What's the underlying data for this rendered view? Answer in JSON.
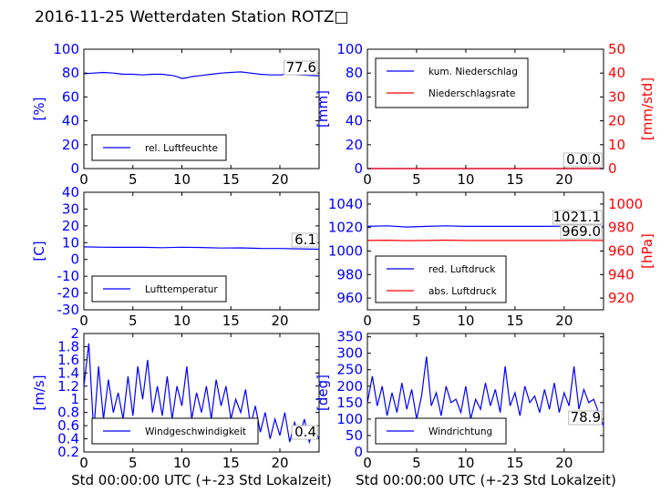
{
  "title": "2016-11-25 Wetterdaten Station ROTZ",
  "title_glyph": "□",
  "xlabel": "Std 00:00:00 UTC (+-23 Std Lokalzeit)",
  "colors": {
    "blue": "#0000ff",
    "red": "#ff0000",
    "black": "#000000"
  },
  "chart_data": [
    {
      "id": "humidity",
      "type": "line",
      "ylabel": "[%]",
      "ylabel_color": "blue",
      "xlim": [
        0,
        24
      ],
      "ylim": [
        0,
        100
      ],
      "xticks": [
        0,
        5,
        10,
        15,
        20
      ],
      "yticks": [
        0,
        20,
        40,
        60,
        80,
        100
      ],
      "legend": "bottom-left",
      "series": [
        {
          "name": "rel. Luftfeuchte",
          "color": "blue",
          "x": [
            0,
            1,
            2,
            3,
            4,
            5,
            6,
            7,
            8,
            9,
            9.5,
            10,
            10.5,
            11,
            12,
            13,
            14,
            15,
            16,
            17,
            18,
            19,
            20,
            21,
            22,
            23,
            24
          ],
          "y": [
            79.5,
            80,
            80.5,
            80,
            79,
            79,
            78.5,
            79,
            79,
            78,
            77,
            75.5,
            76,
            77,
            78,
            79,
            80,
            80.5,
            81,
            80,
            79,
            78.5,
            78.5,
            79,
            78.5,
            78,
            77.6
          ]
        }
      ],
      "annotations": [
        "77.6"
      ]
    },
    {
      "id": "precip",
      "type": "line",
      "ylabel": "[mm]",
      "ylabel_color": "blue",
      "y2label": "[mm/std]",
      "y2label_color": "red",
      "xlim": [
        0,
        24
      ],
      "ylim": [
        0,
        100
      ],
      "y2lim": [
        0,
        50
      ],
      "xticks": [
        0,
        5,
        10,
        15,
        20
      ],
      "yticks": [
        0,
        20,
        40,
        60,
        80,
        100
      ],
      "y2ticks": [
        0,
        10,
        20,
        30,
        40,
        50
      ],
      "legend": "top-left",
      "series": [
        {
          "name": "kum. Niederschlag",
          "color": "blue",
          "axis": "left",
          "x": [
            0,
            24
          ],
          "y": [
            0,
            0
          ]
        },
        {
          "name": "Niederschlagsrate",
          "color": "red",
          "axis": "right",
          "x": [
            0,
            24
          ],
          "y": [
            0,
            0
          ]
        }
      ],
      "annotations": [
        "0.0",
        "0.0"
      ]
    },
    {
      "id": "temperature",
      "type": "line",
      "ylabel": "[C]",
      "ylabel_color": "blue",
      "xlim": [
        0,
        24
      ],
      "ylim": [
        -30,
        40
      ],
      "xticks": [
        0,
        5,
        10,
        15,
        20
      ],
      "yticks": [
        -30,
        -20,
        -10,
        0,
        10,
        20,
        30,
        40
      ],
      "legend": "bottom-left",
      "series": [
        {
          "name": "Lufttemperatur",
          "color": "blue",
          "x": [
            0,
            2,
            4,
            6,
            8,
            10,
            12,
            14,
            16,
            18,
            20,
            22,
            24
          ],
          "y": [
            7.5,
            7.3,
            7.2,
            7.2,
            7,
            7.3,
            7.1,
            6.8,
            6.9,
            6.6,
            6.5,
            6.3,
            6.1
          ]
        }
      ],
      "annotations": [
        "6.1"
      ]
    },
    {
      "id": "pressure",
      "type": "line",
      "ylabel": "",
      "y2label": "[hPa]",
      "y2label_color": "red",
      "xlim": [
        0,
        24
      ],
      "ylim": [
        950,
        1050
      ],
      "y2lim": [
        910,
        1010
      ],
      "xticks": [
        0,
        5,
        10,
        15,
        20
      ],
      "yticks": [
        960,
        980,
        1000,
        1020,
        1040
      ],
      "y2ticks": [
        920,
        940,
        960,
        980,
        1000
      ],
      "legend": "bottom-left",
      "series": [
        {
          "name": "red. Luftdruck",
          "color": "blue",
          "axis": "left",
          "x": [
            0,
            2,
            4,
            6,
            8,
            10,
            12,
            14,
            16,
            18,
            20,
            22,
            24
          ],
          "y": [
            1021,
            1021.5,
            1020.5,
            1021,
            1021.5,
            1021,
            1021,
            1021,
            1021,
            1021,
            1021.2,
            1021.3,
            1021.1
          ]
        },
        {
          "name": "abs. Luftdruck",
          "color": "red",
          "axis": "right",
          "x": [
            0,
            2,
            4,
            6,
            8,
            10,
            12,
            14,
            16,
            18,
            20,
            22,
            24
          ],
          "y": [
            969,
            969.2,
            968.8,
            969,
            969.3,
            969,
            969,
            969,
            969,
            969,
            969,
            969.1,
            969.0
          ]
        }
      ],
      "annotations": [
        "1021.1",
        "969.0"
      ]
    },
    {
      "id": "wind_speed",
      "type": "line",
      "ylabel": "[m/s]",
      "ylabel_color": "blue",
      "xlim": [
        0,
        24
      ],
      "ylim": [
        0.2,
        2.0
      ],
      "xticks": [
        0,
        5,
        10,
        15,
        20
      ],
      "yticks": [
        0.2,
        0.4,
        0.6,
        0.8,
        1.0,
        1.2,
        1.4,
        1.6,
        1.8,
        2.0
      ],
      "legend": "bottom-center",
      "series": [
        {
          "name": "Windgeschwindigkeit",
          "color": "blue",
          "x": [
            0,
            0.5,
            1,
            1.5,
            2,
            2.5,
            3,
            3.5,
            4,
            4.5,
            5,
            5.5,
            6,
            6.5,
            7,
            7.5,
            8,
            8.5,
            9,
            9.5,
            10,
            10.5,
            11,
            11.5,
            12,
            12.5,
            13,
            13.5,
            14,
            14.5,
            15,
            15.5,
            16,
            16.5,
            17,
            17.5,
            18,
            18.5,
            19,
            19.5,
            20,
            20.5,
            21,
            21.5,
            22,
            22.5,
            23,
            23.5,
            24
          ],
          "y": [
            1.2,
            1.85,
            0.5,
            1.5,
            0.7,
            1.3,
            0.8,
            1.1,
            0.7,
            1.35,
            0.75,
            1.5,
            1.0,
            1.6,
            0.8,
            1.2,
            0.75,
            1.35,
            0.7,
            1.2,
            0.9,
            1.5,
            0.7,
            1.1,
            0.8,
            1.2,
            0.7,
            1.3,
            0.9,
            1.2,
            0.7,
            1.0,
            0.8,
            1.15,
            0.6,
            0.9,
            0.5,
            0.8,
            0.4,
            0.7,
            0.45,
            0.8,
            0.35,
            0.65,
            0.45,
            0.7,
            0.35,
            0.55,
            0.4
          ]
        }
      ],
      "annotations": [
        "0.4"
      ]
    },
    {
      "id": "wind_dir",
      "type": "line",
      "ylabel": "[deg]",
      "ylabel_color": "blue",
      "xlim": [
        0,
        24
      ],
      "ylim": [
        0,
        360
      ],
      "xticks": [
        0,
        5,
        10,
        15,
        20
      ],
      "yticks": [
        0,
        50,
        100,
        150,
        200,
        250,
        300,
        350
      ],
      "legend": "bottom-left",
      "series": [
        {
          "name": "Windrichtung",
          "color": "blue",
          "x": [
            0,
            0.5,
            1,
            1.5,
            2,
            2.5,
            3,
            3.5,
            4,
            4.5,
            5,
            5.5,
            6,
            6.5,
            7,
            7.5,
            8,
            8.5,
            9,
            9.5,
            10,
            10.5,
            11,
            11.5,
            12,
            12.5,
            13,
            13.5,
            14,
            14.5,
            15,
            15.5,
            16,
            16.5,
            17,
            17.5,
            18,
            18.5,
            19,
            19.5,
            20,
            20.5,
            21,
            21.5,
            22,
            22.5,
            23,
            23.5,
            24
          ],
          "y": [
            150,
            230,
            140,
            200,
            110,
            180,
            120,
            210,
            130,
            190,
            100,
            170,
            290,
            140,
            180,
            110,
            200,
            150,
            160,
            120,
            200,
            100,
            160,
            130,
            210,
            140,
            190,
            120,
            260,
            140,
            180,
            110,
            200,
            150,
            170,
            120,
            190,
            130,
            210,
            120,
            180,
            140,
            260,
            130,
            190,
            150,
            160,
            120,
            78.9
          ]
        }
      ],
      "annotations": [
        "78.9"
      ]
    }
  ]
}
